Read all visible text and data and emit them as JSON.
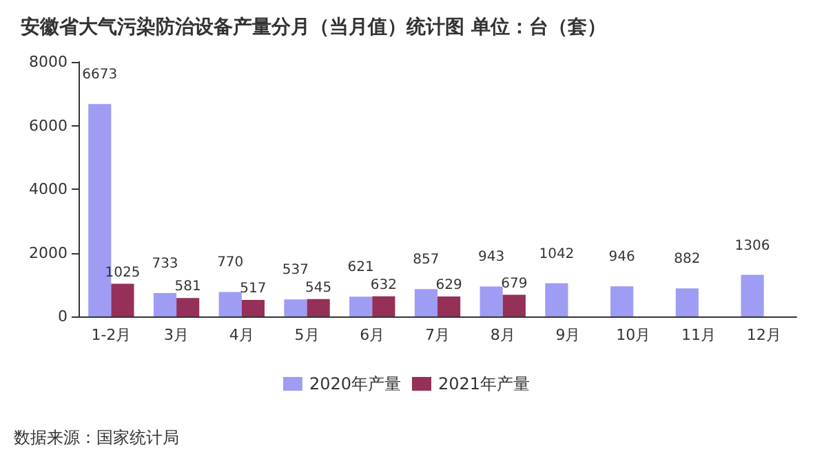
{
  "chart_data": {
    "type": "bar",
    "title": "安徽省大气污染防治设备产量分月（当月值）统计图 单位：台（套）",
    "categories": [
      "1-2月",
      "3月",
      "4月",
      "5月",
      "6月",
      "7月",
      "8月",
      "9月",
      "10月",
      "11月",
      "12月"
    ],
    "series": [
      {
        "name": "2020年产量",
        "color": "#9f9cf4",
        "values": [
          6673,
          733,
          770,
          537,
          621,
          857,
          943,
          1042,
          946,
          882,
          1306
        ]
      },
      {
        "name": "2021年产量",
        "color": "#953059",
        "values": [
          1025,
          581,
          517,
          545,
          632,
          629,
          679,
          null,
          null,
          null,
          null
        ]
      }
    ],
    "ylim": [
      0,
      8000
    ],
    "yticks": [
      0,
      2000,
      4000,
      6000,
      8000
    ],
    "grid": false,
    "legend": "bottom",
    "data_labels": true,
    "annotations": [
      "数据来源：国家统计局"
    ]
  }
}
